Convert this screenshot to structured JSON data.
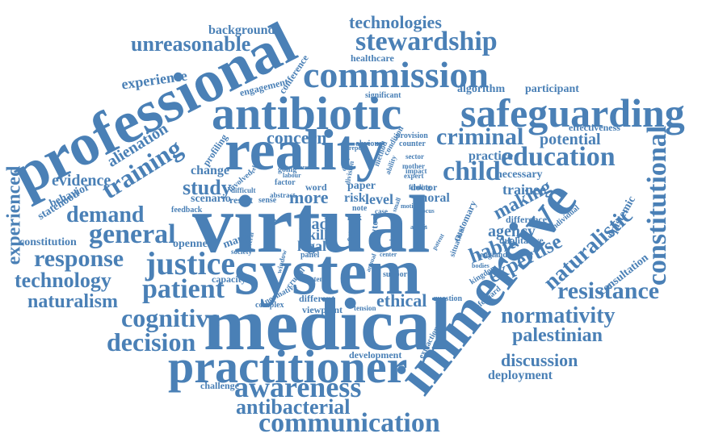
{
  "color": "#4a80b6",
  "words": [
    {
      "text": "virtual",
      "weight": 1.0
    },
    {
      "text": "medical",
      "weight": 0.97
    },
    {
      "text": "professional",
      "weight": 0.9
    },
    {
      "text": "system",
      "weight": 0.88
    },
    {
      "text": "reality",
      "weight": 0.86
    },
    {
      "text": "immersive",
      "weight": 0.84
    },
    {
      "text": "antibiotic",
      "weight": 0.78
    },
    {
      "text": "safeguarding",
      "weight": 0.72
    },
    {
      "text": "practitioner",
      "weight": 0.7
    },
    {
      "text": "commission",
      "weight": 0.62
    },
    {
      "text": "communication",
      "weight": 0.56
    },
    {
      "text": "justice",
      "weight": 0.55
    },
    {
      "text": "awareness",
      "weight": 0.52
    },
    {
      "text": "education",
      "weight": 0.5
    },
    {
      "text": "patient",
      "weight": 0.49
    },
    {
      "text": "constitutional",
      "weight": 0.47
    },
    {
      "text": "stewardship",
      "weight": 0.46
    },
    {
      "text": "general",
      "weight": 0.45
    },
    {
      "text": "training",
      "weight": 0.44
    },
    {
      "text": "cognitive",
      "weight": 0.43
    },
    {
      "text": "antibacterial",
      "weight": 0.42
    },
    {
      "text": "decision",
      "weight": 0.41
    },
    {
      "text": "criminal",
      "weight": 0.4
    },
    {
      "text": "child",
      "weight": 0.4
    },
    {
      "text": "resistance",
      "weight": 0.38
    },
    {
      "text": "response",
      "weight": 0.37
    },
    {
      "text": "demand",
      "weight": 0.36
    },
    {
      "text": "naturalistic",
      "weight": 0.35
    },
    {
      "text": "expertise",
      "weight": 0.34
    },
    {
      "text": "normativity",
      "weight": 0.33
    },
    {
      "text": "technology",
      "weight": 0.32
    },
    {
      "text": "naturalism",
      "weight": 0.31
    },
    {
      "text": "experienced",
      "weight": 0.3
    },
    {
      "text": "unreasonable",
      "weight": 0.29
    },
    {
      "text": "concern",
      "weight": 0.29
    },
    {
      "text": "habit",
      "weight": 0.28
    },
    {
      "text": "study",
      "weight": 0.28
    },
    {
      "text": "making",
      "weight": 0.27
    },
    {
      "text": "palestinian",
      "weight": 0.27
    },
    {
      "text": "potential",
      "weight": 0.26
    },
    {
      "text": "alienation",
      "weight": 0.26
    },
    {
      "text": "discussion",
      "weight": 0.25
    },
    {
      "text": "ethical",
      "weight": 0.25
    },
    {
      "text": "technologies",
      "weight": 0.24
    },
    {
      "text": "evidence",
      "weight": 0.23
    },
    {
      "text": "agency",
      "weight": 0.22
    },
    {
      "text": "more",
      "weight": 0.22
    },
    {
      "text": "trainee",
      "weight": 0.21
    },
    {
      "text": "experience",
      "weight": 0.2
    },
    {
      "text": "load",
      "weight": 0.2
    },
    {
      "text": "skill",
      "weight": 0.2
    },
    {
      "text": "legal",
      "weight": 0.2
    },
    {
      "text": "change",
      "weight": 0.19
    },
    {
      "text": "practice",
      "weight": 0.19
    },
    {
      "text": "deployment",
      "weight": 0.19
    },
    {
      "text": "constitution",
      "weight": 0.18
    },
    {
      "text": "algorithm",
      "weight": 0.18
    },
    {
      "text": "background",
      "weight": 0.18
    },
    {
      "text": "level",
      "weight": 0.18
    },
    {
      "text": "risk",
      "weight": 0.18
    },
    {
      "text": "epistemic",
      "weight": 0.17
    },
    {
      "text": "necessary",
      "weight": 0.17
    },
    {
      "text": "scenario",
      "weight": 0.17
    },
    {
      "text": "participant",
      "weight": 0.16
    },
    {
      "text": "moral",
      "weight": 0.16
    },
    {
      "text": "paper",
      "weight": 0.16
    },
    {
      "text": "many",
      "weight": 0.16
    },
    {
      "text": "openness",
      "weight": 0.16
    },
    {
      "text": "consultation",
      "weight": 0.16
    },
    {
      "text": "behavior",
      "weight": 0.15
    },
    {
      "text": "statehood",
      "weight": 0.15
    },
    {
      "text": "capacity",
      "weight": 0.15
    },
    {
      "text": "result",
      "weight": 0.15
    },
    {
      "text": "effectiveness",
      "weight": 0.15
    },
    {
      "text": "challenge",
      "weight": 0.15
    },
    {
      "text": "healthcare",
      "weight": 0.15
    },
    {
      "text": "qualitative",
      "weight": 0.15
    },
    {
      "text": "engagement",
      "weight": 0.14
    },
    {
      "text": "different",
      "weight": 0.14
    },
    {
      "text": "development",
      "weight": 0.14
    },
    {
      "text": "customary",
      "weight": 0.14
    },
    {
      "text": "viewpoint",
      "weight": 0.14
    },
    {
      "text": "difference",
      "weight": 0.14
    },
    {
      "text": "conference",
      "weight": 0.14
    },
    {
      "text": "word",
      "weight": 0.14
    },
    {
      "text": "profiling",
      "weight": 0.13
    },
    {
      "text": "individual",
      "weight": 0.13
    },
    {
      "text": "going",
      "weight": 0.13
    },
    {
      "text": "sense",
      "weight": 0.13
    },
    {
      "text": "provision",
      "weight": 0.13
    },
    {
      "text": "scrutiny",
      "weight": 0.13
    },
    {
      "text": "doctor",
      "weight": 0.13
    },
    {
      "text": "feedback",
      "weight": 0.13
    },
    {
      "text": "significant",
      "weight": 0.13
    },
    {
      "text": "ethic",
      "weight": 0.13
    },
    {
      "text": "method",
      "weight": 0.12
    },
    {
      "text": "factor",
      "weight": 0.12
    },
    {
      "text": "normative",
      "weight": 0.12
    },
    {
      "text": "kingdom",
      "weight": 0.12
    },
    {
      "text": "complex",
      "weight": 0.12
    },
    {
      "text": "safeguard",
      "weight": 0.12
    },
    {
      "text": "england",
      "weight": 0.12
    },
    {
      "text": "extraction",
      "weight": 0.12
    },
    {
      "text": "question",
      "weight": 0.11
    },
    {
      "text": "support",
      "weight": 0.11
    },
    {
      "text": "condition",
      "weight": 0.11
    },
    {
      "text": "obvious",
      "weight": 0.11
    },
    {
      "text": "counter",
      "weight": 0.11
    },
    {
      "text": "panel",
      "weight": 0.11
    },
    {
      "text": "crucial",
      "weight": 0.11
    },
    {
      "text": "involved",
      "weight": 0.11
    },
    {
      "text": "situation",
      "weight": 0.1
    },
    {
      "text": "abstract",
      "weight": 0.1
    },
    {
      "text": "difficult",
      "weight": 0.1
    },
    {
      "text": "society",
      "weight": 0.1
    },
    {
      "text": "division",
      "weight": 0.1
    },
    {
      "text": "tension",
      "weight": 0.1
    },
    {
      "text": "finding",
      "weight": 0.1
    },
    {
      "text": "mother",
      "weight": 0.1
    },
    {
      "text": "sector",
      "weight": 0.1
    },
    {
      "text": "impact",
      "weight": 0.1
    },
    {
      "text": "expert",
      "weight": 0.1
    },
    {
      "text": "extent",
      "weight": 0.1
    },
    {
      "text": "inference",
      "weight": 0.1
    },
    {
      "text": "window",
      "weight": 0.1
    },
    {
      "text": "report",
      "weight": 0.1
    },
    {
      "text": "relation",
      "weight": 0.1
    },
    {
      "text": "house",
      "weight": 0.1
    },
    {
      "text": "action",
      "weight": 0.1
    },
    {
      "text": "bodies",
      "weight": 0.1
    },
    {
      "text": "center",
      "weight": 0.1
    },
    {
      "text": "dealt",
      "weight": 0.1
    },
    {
      "text": "lack",
      "weight": 0.1
    },
    {
      "text": "note",
      "weight": 0.1
    },
    {
      "text": "case",
      "weight": 0.1
    },
    {
      "text": "labour",
      "weight": 0.1
    },
    {
      "text": "ability",
      "weight": 0.1
    },
    {
      "text": "motion",
      "weight": 0.1
    },
    {
      "text": "small",
      "weight": 0.1
    },
    {
      "text": "patent",
      "weight": 0.1
    },
    {
      "text": "world",
      "weight": 0.1
    },
    {
      "text": "social",
      "weight": 0.1
    },
    {
      "text": "several",
      "weight": 0.1
    },
    {
      "text": "annual",
      "weight": 0.1
    },
    {
      "text": "focus",
      "weight": 0.1
    },
    {
      "text": "tool",
      "weight": 0.1
    },
    {
      "text": "treat",
      "weight": 0.1
    }
  ]
}
